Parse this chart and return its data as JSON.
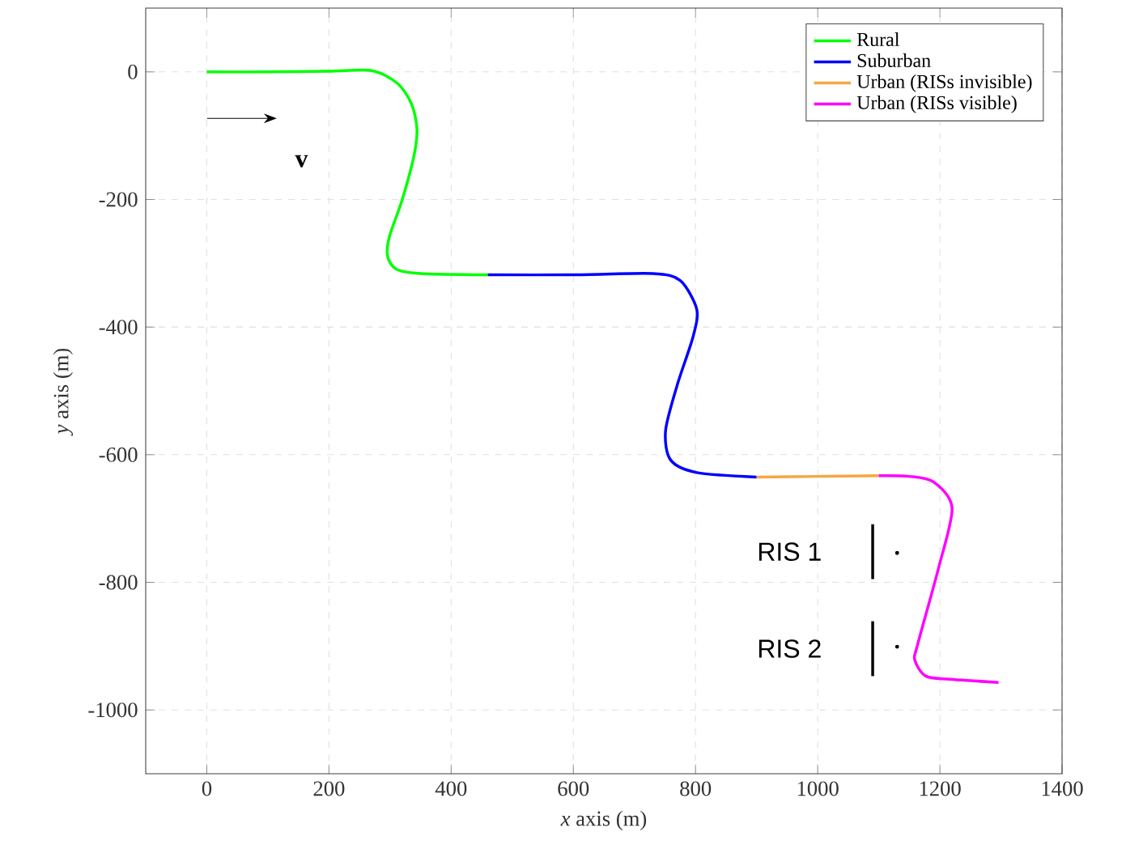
{
  "chart_data": {
    "type": "line",
    "xlabel": "*x* axis (m)",
    "ylabel": "*y* axis (m)",
    "xlim": [
      -100,
      1400
    ],
    "ylim": [
      -1100,
      100
    ],
    "xticks": [
      0,
      200,
      400,
      600,
      800,
      1000,
      1200,
      1400
    ],
    "yticks": [
      -1000,
      -800,
      -600,
      -400,
      -200,
      0
    ],
    "grid": true,
    "legend": "top right",
    "line_style": "solid",
    "marker": "none",
    "series": [
      {
        "name": "Rural",
        "color": "#00ff00",
        "x": [
          0,
          100,
          200,
          270,
          312,
          335,
          344,
          339,
          320,
          299,
          296,
          310,
          350,
          460
        ],
        "values": [
          0,
          0,
          1,
          2,
          -18,
          -50,
          -89,
          -132,
          -200,
          -258,
          -289,
          -309,
          -316,
          -318
        ]
      },
      {
        "name": "Suburban",
        "color": "#0000ff",
        "x": [
          460,
          600,
          730,
          775,
          802,
          796,
          770,
          751,
          759,
          802,
          900
        ],
        "values": [
          -318,
          -318,
          -316,
          -327,
          -372,
          -415,
          -491,
          -562,
          -608,
          -628,
          -635
        ]
      },
      {
        "name": "Urban (RISs invisible)",
        "color": "#f5a742",
        "x": [
          900,
          1000,
          1100
        ],
        "values": [
          -635,
          -634,
          -633
        ]
      },
      {
        "name": "Urban (RISs visible)",
        "color": "#ff00ff",
        "x": [
          1100,
          1150,
          1190,
          1220,
          1198,
          1164,
          1159,
          1177,
          1217,
          1296
        ],
        "values": [
          -633,
          -634,
          -643,
          -684,
          -777,
          -896,
          -922,
          -947,
          -952,
          -957
        ]
      },
      {
        "type": "line",
        "color": "#000000",
        "x": [
          1090,
          1090
        ],
        "values": [
          -709,
          -795
        ]
      },
      {
        "type": "line",
        "color": "#000000",
        "x": [
          1090,
          1090
        ],
        "values": [
          -861,
          -947
        ]
      },
      {
        "type": "scatter",
        "color": "#000000",
        "marker": "circle",
        "x": [
          1130,
          1130
        ],
        "values": [
          -754,
          -901
        ]
      }
    ],
    "annotations": [
      "v",
      "RIS 1",
      "RIS 2"
    ]
  }
}
